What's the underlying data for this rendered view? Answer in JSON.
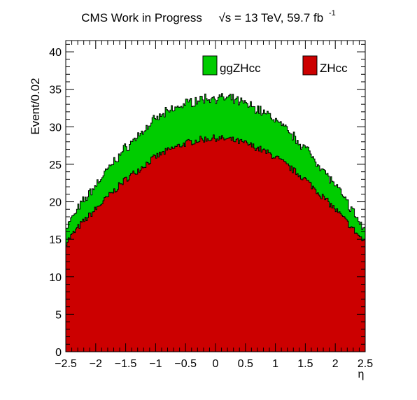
{
  "header": {
    "title_prefix": "CMS Work in Progress",
    "title_energy": "= 13 TeV, 59.7 fb",
    "title_energy_symbol": "√s",
    "title_lumi_exp": "-1"
  },
  "chart_data": {
    "type": "area",
    "stacked": true,
    "xlabel": "η",
    "ylabel": "Event/0.02",
    "xlim": [
      -2.5,
      2.5
    ],
    "ylim": [
      0,
      41.5
    ],
    "bin_width": 0.02,
    "x_ticks": [
      "−2.5",
      "−2",
      "−1.5",
      "−1",
      "−0.5",
      "0",
      "0.5",
      "1",
      "1.5",
      "2",
      "2.5"
    ],
    "y_ticks": [
      "0",
      "5",
      "10",
      "15",
      "20",
      "25",
      "30",
      "35",
      "40"
    ],
    "x": [
      -2.5,
      -2.25,
      -2.0,
      -1.75,
      -1.5,
      -1.25,
      -1.0,
      -0.75,
      -0.5,
      -0.25,
      0.0,
      0.25,
      0.5,
      0.75,
      1.0,
      1.25,
      1.5,
      1.75,
      2.0,
      2.25,
      2.5
    ],
    "series": [
      {
        "name": "ZHcc",
        "color": "#cc0000",
        "values": [
          14.5,
          17.0,
          19.0,
          21.0,
          23.0,
          24.5,
          26.0,
          27.0,
          27.8,
          28.3,
          28.5,
          28.3,
          27.8,
          27.0,
          26.0,
          24.5,
          23.0,
          21.0,
          19.0,
          16.8,
          14.5
        ]
      },
      {
        "name": "ggZHcc",
        "color": "#00cc00",
        "values": [
          2.0,
          2.6,
          3.2,
          3.8,
          4.2,
          4.6,
          5.0,
          5.2,
          5.3,
          5.4,
          5.4,
          5.4,
          5.3,
          5.2,
          5.0,
          4.6,
          4.2,
          3.8,
          3.2,
          2.5,
          1.5
        ]
      }
    ],
    "legend": {
      "placement": "top-right",
      "entries": [
        "ggZHcc",
        "ZHcc"
      ]
    },
    "grid": false
  }
}
